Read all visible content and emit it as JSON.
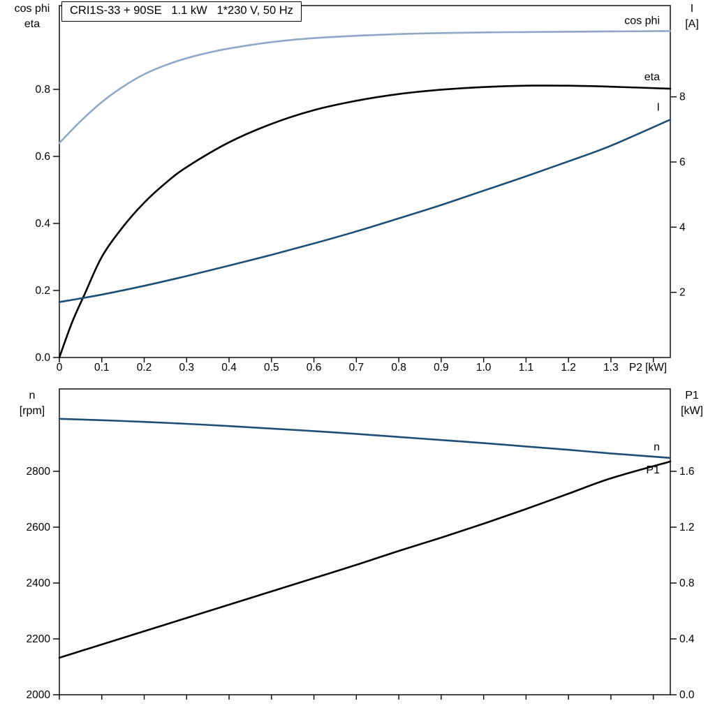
{
  "title_box": "CRI1S-33 + 90SE   1.1 kW   1*230 V, 50 Hz",
  "colors": {
    "light_blue": "#8fa8c8",
    "dark_blue": "#1d4f76",
    "black": "#000000"
  },
  "chart_data": [
    {
      "type": "line",
      "id": "top-chart",
      "title": "CRI1S-33 + 90SE   1.1 kW   1*230 V, 50 Hz",
      "x_axis": {
        "label": "P2 [kW]",
        "range": [
          0,
          1.44
        ],
        "ticks": [
          {
            "v": 0,
            "label": "0"
          },
          {
            "v": 0.1,
            "label": "0.1"
          },
          {
            "v": 0.2,
            "label": "0.2"
          },
          {
            "v": 0.3,
            "label": "0.3"
          },
          {
            "v": 0.4,
            "label": "0.4"
          },
          {
            "v": 0.5,
            "label": "0.5"
          },
          {
            "v": 0.6,
            "label": "0.6"
          },
          {
            "v": 0.7,
            "label": "0.7"
          },
          {
            "v": 0.8,
            "label": "0.8"
          },
          {
            "v": 0.9,
            "label": "0.9"
          },
          {
            "v": 1.0,
            "label": "1.0"
          },
          {
            "v": 1.1,
            "label": "1.1"
          },
          {
            "v": 1.2,
            "label": "1.2"
          },
          {
            "v": 1.3,
            "label": "1.3"
          },
          {
            "v": 1.4,
            "label": ""
          }
        ]
      },
      "left_axis": {
        "title_lines": [
          "cos phi",
          "eta"
        ],
        "range": [
          0,
          1.05
        ],
        "ticks": [
          {
            "v": 0.0,
            "label": "0.0"
          },
          {
            "v": 0.2,
            "label": "0.2"
          },
          {
            "v": 0.4,
            "label": "0.4"
          },
          {
            "v": 0.6,
            "label": "0.6"
          },
          {
            "v": 0.8,
            "label": "0.8"
          }
        ]
      },
      "right_axis": {
        "title_lines": [
          "I",
          "[A]"
        ],
        "range": [
          0,
          10.8
        ],
        "ticks": [
          {
            "v": 2,
            "label": "2"
          },
          {
            "v": 4,
            "label": "4"
          },
          {
            "v": 6,
            "label": "6"
          },
          {
            "v": 8,
            "label": "8"
          }
        ]
      },
      "series": [
        {
          "name": "cos phi",
          "axis": "left",
          "color": "light_blue",
          "label_dy": -10,
          "points": [
            [
              0,
              0.64
            ],
            [
              0.05,
              0.705
            ],
            [
              0.1,
              0.762
            ],
            [
              0.15,
              0.808
            ],
            [
              0.2,
              0.845
            ],
            [
              0.25,
              0.872
            ],
            [
              0.3,
              0.893
            ],
            [
              0.35,
              0.909
            ],
            [
              0.4,
              0.922
            ],
            [
              0.5,
              0.941
            ],
            [
              0.6,
              0.953
            ],
            [
              0.7,
              0.96
            ],
            [
              0.8,
              0.965
            ],
            [
              0.9,
              0.968
            ],
            [
              1.0,
              0.97
            ],
            [
              1.1,
              0.971
            ],
            [
              1.2,
              0.972
            ],
            [
              1.3,
              0.973
            ],
            [
              1.44,
              0.974
            ]
          ]
        },
        {
          "name": "eta",
          "axis": "left",
          "color": "black",
          "label_dy": -12,
          "points": [
            [
              0,
              0
            ],
            [
              0.03,
              0.105
            ],
            [
              0.06,
              0.19
            ],
            [
              0.1,
              0.3
            ],
            [
              0.15,
              0.39
            ],
            [
              0.2,
              0.462
            ],
            [
              0.25,
              0.52
            ],
            [
              0.3,
              0.568
            ],
            [
              0.4,
              0.642
            ],
            [
              0.5,
              0.697
            ],
            [
              0.6,
              0.738
            ],
            [
              0.7,
              0.766
            ],
            [
              0.8,
              0.786
            ],
            [
              0.9,
              0.799
            ],
            [
              1.0,
              0.807
            ],
            [
              1.1,
              0.811
            ],
            [
              1.2,
              0.811
            ],
            [
              1.3,
              0.808
            ],
            [
              1.44,
              0.802
            ]
          ]
        },
        {
          "name": "I",
          "axis": "right",
          "color": "dark_blue",
          "label_dy": -13,
          "points": [
            [
              0,
              1.7
            ],
            [
              0.1,
              1.93
            ],
            [
              0.2,
              2.2
            ],
            [
              0.3,
              2.5
            ],
            [
              0.4,
              2.82
            ],
            [
              0.5,
              3.15
            ],
            [
              0.6,
              3.5
            ],
            [
              0.7,
              3.87
            ],
            [
              0.8,
              4.27
            ],
            [
              0.9,
              4.68
            ],
            [
              1.0,
              5.12
            ],
            [
              1.1,
              5.56
            ],
            [
              1.2,
              6.02
            ],
            [
              1.3,
              6.5
            ],
            [
              1.44,
              7.3
            ]
          ]
        }
      ]
    },
    {
      "type": "line",
      "id": "bottom-chart",
      "title": "",
      "x_axis": {
        "label": "",
        "range": [
          0,
          1.44
        ],
        "ticks": [
          {
            "v": 0,
            "label": ""
          },
          {
            "v": 0.1,
            "label": ""
          },
          {
            "v": 0.2,
            "label": ""
          },
          {
            "v": 0.3,
            "label": ""
          },
          {
            "v": 0.4,
            "label": ""
          },
          {
            "v": 0.5,
            "label": ""
          },
          {
            "v": 0.6,
            "label": ""
          },
          {
            "v": 0.7,
            "label": ""
          },
          {
            "v": 0.8,
            "label": ""
          },
          {
            "v": 0.9,
            "label": ""
          },
          {
            "v": 1.0,
            "label": ""
          },
          {
            "v": 1.1,
            "label": ""
          },
          {
            "v": 1.2,
            "label": ""
          },
          {
            "v": 1.3,
            "label": ""
          },
          {
            "v": 1.4,
            "label": ""
          }
        ]
      },
      "left_axis": {
        "title_lines": [
          "n",
          "[rpm]"
        ],
        "range": [
          2000,
          3095
        ],
        "ticks": [
          {
            "v": 2000,
            "label": "2000"
          },
          {
            "v": 2200,
            "label": "2200"
          },
          {
            "v": 2400,
            "label": "2400"
          },
          {
            "v": 2600,
            "label": "2600"
          },
          {
            "v": 2800,
            "label": "2800"
          }
        ]
      },
      "right_axis": {
        "title_lines": [
          "P1",
          "[kW]"
        ],
        "range": [
          0,
          2.19
        ],
        "ticks": [
          {
            "v": 0.0,
            "label": "0.0"
          },
          {
            "v": 0.4,
            "label": "0.4"
          },
          {
            "v": 0.8,
            "label": "0.8"
          },
          {
            "v": 1.2,
            "label": "1.2"
          },
          {
            "v": 1.6,
            "label": "1.6"
          }
        ]
      },
      "series": [
        {
          "name": "n",
          "axis": "left",
          "color": "dark_blue",
          "label_dy": -11,
          "points": [
            [
              0,
              2988
            ],
            [
              0.1,
              2983
            ],
            [
              0.2,
              2977
            ],
            [
              0.3,
              2970
            ],
            [
              0.4,
              2962
            ],
            [
              0.5,
              2953
            ],
            [
              0.6,
              2944
            ],
            [
              0.7,
              2934
            ],
            [
              0.8,
              2923
            ],
            [
              0.9,
              2912
            ],
            [
              1.0,
              2901
            ],
            [
              1.1,
              2889
            ],
            [
              1.2,
              2877
            ],
            [
              1.3,
              2864
            ],
            [
              1.44,
              2848
            ]
          ]
        },
        {
          "name": "P1",
          "axis": "right",
          "color": "black",
          "label_dy": 17,
          "points": [
            [
              0,
              0.265
            ],
            [
              0.1,
              0.36
            ],
            [
              0.2,
              0.455
            ],
            [
              0.3,
              0.55
            ],
            [
              0.4,
              0.645
            ],
            [
              0.5,
              0.74
            ],
            [
              0.6,
              0.835
            ],
            [
              0.7,
              0.93
            ],
            [
              0.8,
              1.03
            ],
            [
              0.9,
              1.125
            ],
            [
              1.0,
              1.225
            ],
            [
              1.1,
              1.33
            ],
            [
              1.2,
              1.44
            ],
            [
              1.3,
              1.55
            ],
            [
              1.44,
              1.67
            ]
          ]
        }
      ]
    }
  ]
}
